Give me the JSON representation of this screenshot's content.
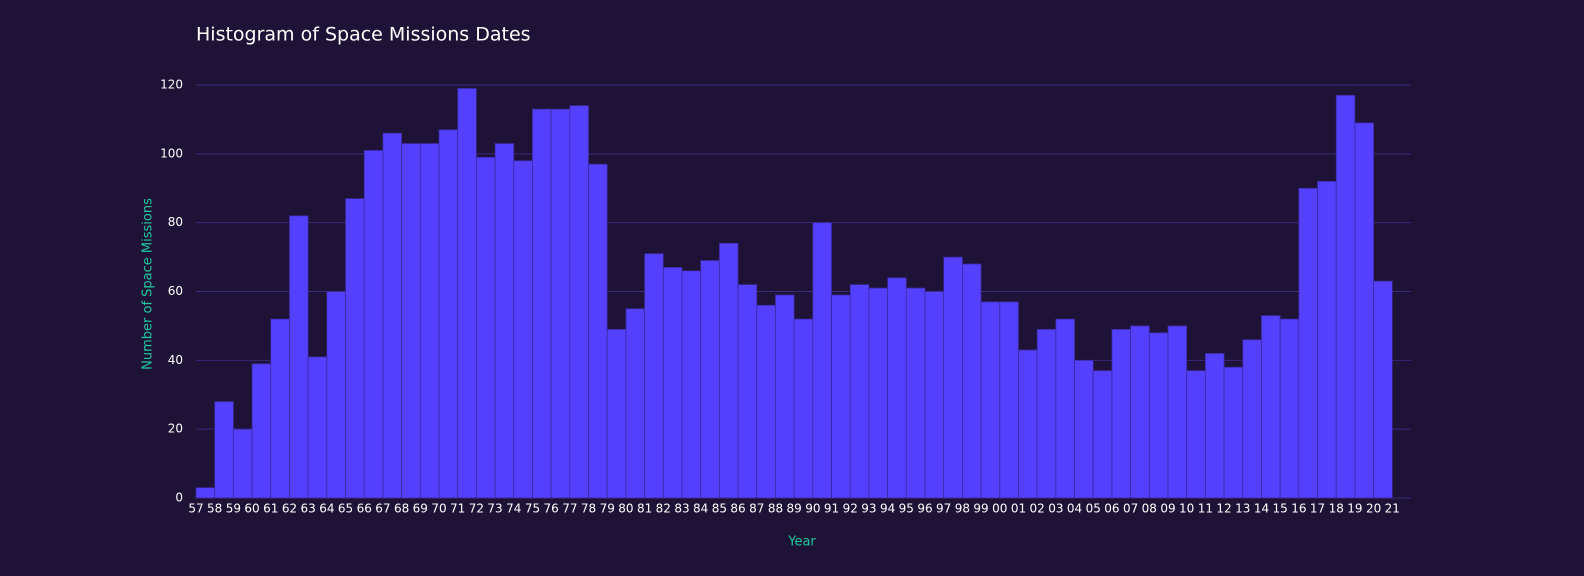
{
  "chart_data": {
    "type": "histogram",
    "title": "Histogram of Space Missions Dates",
    "x_label": "Year",
    "y_label": "Number of Space Missions",
    "bins": [
      1957,
      1958,
      1959,
      1960,
      1961,
      1962,
      1963,
      1964,
      1965,
      1966,
      1967,
      1968,
      1969,
      1970,
      1971,
      1972,
      1973,
      1974,
      1975,
      1976,
      1977,
      1978,
      1979,
      1980,
      1981,
      1982,
      1983,
      1984,
      1985,
      1986,
      1987,
      1988,
      1989,
      1990,
      1991,
      1992,
      1993,
      1994,
      1995,
      1996,
      1997,
      1998,
      1999,
      2000,
      2001,
      2002,
      2003,
      2004,
      2005,
      2006,
      2007,
      2008,
      2009,
      2010,
      2011,
      2012,
      2013,
      2014,
      2015,
      2016,
      2017,
      2018,
      2019,
      2020,
      2021
    ],
    "values": [
      3,
      28,
      20,
      39,
      52,
      82,
      41,
      60,
      87,
      101,
      106,
      103,
      103,
      107,
      119,
      99,
      103,
      98,
      113,
      113,
      114,
      97,
      49,
      55,
      71,
      67,
      66,
      69,
      74,
      62,
      56,
      59,
      52,
      80,
      59,
      62,
      61,
      64,
      61,
      60,
      70,
      68,
      57,
      57,
      43,
      49,
      52,
      40,
      37,
      49,
      50,
      48,
      50,
      37,
      42,
      38,
      46,
      53,
      52,
      90,
      92,
      117,
      109,
      63
    ],
    "color": "#5540ff",
    "edge_color": "#3a2a9a",
    "xlim": [
      1957,
      2022
    ],
    "ylim": [
      0,
      120
    ],
    "xticks": [
      {
        "value": 1957,
        "label": "57"
      },
      {
        "value": 1958,
        "label": "58"
      },
      {
        "value": 1959,
        "label": "59"
      },
      {
        "value": 1960,
        "label": "60"
      },
      {
        "value": 1961,
        "label": "61"
      },
      {
        "value": 1962,
        "label": "62"
      },
      {
        "value": 1963,
        "label": "63"
      },
      {
        "value": 1964,
        "label": "64"
      },
      {
        "value": 1965,
        "label": "65"
      },
      {
        "value": 1966,
        "label": "66"
      },
      {
        "value": 1967,
        "label": "67"
      },
      {
        "value": 1968,
        "label": "68"
      },
      {
        "value": 1969,
        "label": "69"
      },
      {
        "value": 1970,
        "label": "70"
      },
      {
        "value": 1971,
        "label": "71"
      },
      {
        "value": 1972,
        "label": "72"
      },
      {
        "value": 1973,
        "label": "73"
      },
      {
        "value": 1974,
        "label": "74"
      },
      {
        "value": 1975,
        "label": "75"
      },
      {
        "value": 1976,
        "label": "76"
      },
      {
        "value": 1977,
        "label": "77"
      },
      {
        "value": 1978,
        "label": "78"
      },
      {
        "value": 1979,
        "label": "79"
      },
      {
        "value": 1980,
        "label": "80"
      },
      {
        "value": 1981,
        "label": "81"
      },
      {
        "value": 1982,
        "label": "82"
      },
      {
        "value": 1983,
        "label": "83"
      },
      {
        "value": 1984,
        "label": "84"
      },
      {
        "value": 1985,
        "label": "85"
      },
      {
        "value": 1986,
        "label": "86"
      },
      {
        "value": 1987,
        "label": "87"
      },
      {
        "value": 1988,
        "label": "88"
      },
      {
        "value": 1989,
        "label": "89"
      },
      {
        "value": 1990,
        "label": "90"
      },
      {
        "value": 1991,
        "label": "91"
      },
      {
        "value": 1992,
        "label": "92"
      },
      {
        "value": 1993,
        "label": "93"
      },
      {
        "value": 1994,
        "label": "94"
      },
      {
        "value": 1995,
        "label": "95"
      },
      {
        "value": 1996,
        "label": "96"
      },
      {
        "value": 1997,
        "label": "97"
      },
      {
        "value": 1998,
        "label": "98"
      },
      {
        "value": 1999,
        "label": "99"
      },
      {
        "value": 2000,
        "label": "00"
      },
      {
        "value": 2001,
        "label": "01"
      },
      {
        "value": 2002,
        "label": "02"
      },
      {
        "value": 2003,
        "label": "03"
      },
      {
        "value": 2004,
        "label": "04"
      },
      {
        "value": 2005,
        "label": "05"
      },
      {
        "value": 2006,
        "label": "06"
      },
      {
        "value": 2007,
        "label": "07"
      },
      {
        "value": 2008,
        "label": "08"
      },
      {
        "value": 2009,
        "label": "09"
      },
      {
        "value": 2010,
        "label": "10"
      },
      {
        "value": 2011,
        "label": "11"
      },
      {
        "value": 2012,
        "label": "12"
      },
      {
        "value": 2013,
        "label": "13"
      },
      {
        "value": 2014,
        "label": "14"
      },
      {
        "value": 2015,
        "label": "15"
      },
      {
        "value": 2016,
        "label": "16"
      },
      {
        "value": 2017,
        "label": "17"
      },
      {
        "value": 2018,
        "label": "18"
      },
      {
        "value": 2019,
        "label": "19"
      },
      {
        "value": 2020,
        "label": "20"
      },
      {
        "value": 2021,
        "label": "21"
      }
    ],
    "yticks": [
      0,
      20,
      40,
      60,
      80,
      100,
      120
    ],
    "grid": true,
    "grid_color": "#3a2a7a"
  }
}
